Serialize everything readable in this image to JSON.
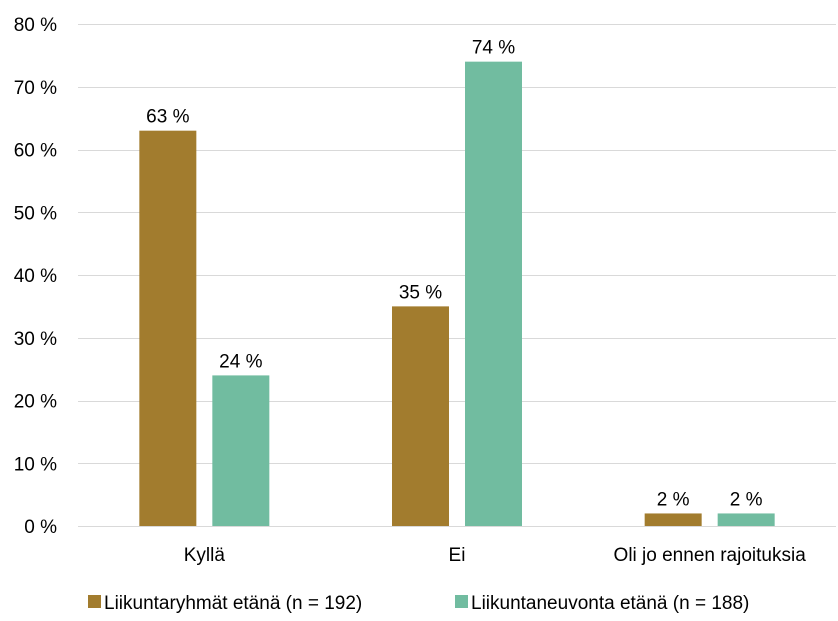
{
  "chart_data": {
    "type": "bar",
    "categories": [
      "Kyllä",
      "Ei",
      "Oli jo ennen rajoituksia"
    ],
    "series": [
      {
        "name": "Liikuntaryhmät etänä (n = 192)",
        "values": [
          63,
          35,
          2
        ],
        "labels": [
          "63 %",
          "35 %",
          "2 %"
        ],
        "color": "#a27c2e"
      },
      {
        "name": "Liikuntaneuvonta etänä (n = 188)",
        "values": [
          24,
          74,
          2
        ],
        "labels": [
          "24 %",
          "74 %",
          "2 %"
        ],
        "color": "#71bca0"
      }
    ],
    "ylim": [
      0,
      80
    ],
    "yticks": [
      0,
      10,
      20,
      30,
      40,
      50,
      60,
      70,
      80
    ],
    "ytick_labels": [
      "0 %",
      "10 %",
      "20 %",
      "30 %",
      "40 %",
      "50 %",
      "60 %",
      "70 %",
      "80 %"
    ],
    "grid": true,
    "legend": "bottom",
    "gridline_color": "#d9d9d9"
  }
}
